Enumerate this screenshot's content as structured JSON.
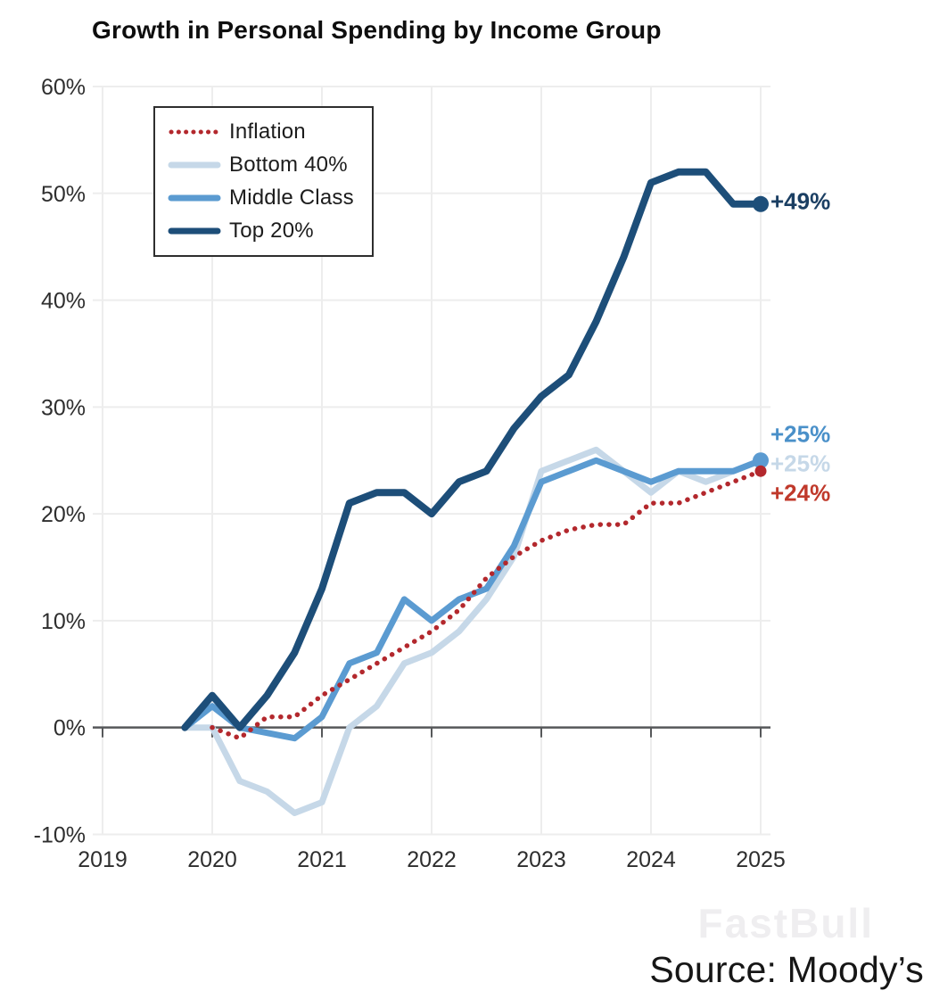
{
  "chart_data": {
    "type": "line",
    "title": "Growth in Personal Spending by Income Group",
    "x_axis": {
      "ticks": [
        "2019",
        "2020",
        "2021",
        "2022",
        "2023",
        "2024",
        "2025"
      ],
      "tick_values": [
        2019,
        2020,
        2021,
        2022,
        2023,
        2024,
        2025
      ],
      "range": [
        2019,
        2025
      ]
    },
    "y_axis": {
      "ticks": [
        "60%",
        "50%",
        "40%",
        "30%",
        "20%",
        "10%",
        "0%",
        "-10%"
      ],
      "tick_values": [
        60,
        50,
        40,
        30,
        20,
        10,
        0,
        -10
      ],
      "range": [
        -10,
        60
      ],
      "unit": "%"
    },
    "grid": true,
    "legend_position": "top-left",
    "series": [
      {
        "name": "Inflation",
        "color": "#b3282d",
        "label_color": "#c0392b",
        "style": "dotted",
        "line_width": 5.5,
        "end_label": "+24%",
        "end_dot": true,
        "dot_radius": 6.5,
        "end_label_offset_y": 25,
        "z": 2,
        "points": [
          [
            2020,
            0
          ],
          [
            2020.25,
            -1
          ],
          [
            2020.5,
            1
          ],
          [
            2020.75,
            1
          ],
          [
            2021,
            3
          ],
          [
            2021.25,
            4.5
          ],
          [
            2021.5,
            6
          ],
          [
            2021.75,
            7.5
          ],
          [
            2022,
            9
          ],
          [
            2022.25,
            11
          ],
          [
            2022.5,
            14
          ],
          [
            2022.75,
            16
          ],
          [
            2023,
            17.5
          ],
          [
            2023.25,
            18.5
          ],
          [
            2023.5,
            19
          ],
          [
            2023.75,
            19
          ],
          [
            2024,
            21
          ],
          [
            2024.25,
            21
          ],
          [
            2024.5,
            22
          ],
          [
            2024.75,
            23
          ],
          [
            2025,
            24
          ]
        ]
      },
      {
        "name": "Bottom 40%",
        "color": "#c6d8e8",
        "label_color": "#c6d8e8",
        "style": "solid",
        "line_width": 7,
        "end_label": "+25%",
        "end_dot": false,
        "dot_radius": 0,
        "end_label_offset_y": 4,
        "z": 0,
        "points": [
          [
            2019.75,
            0
          ],
          [
            2020,
            0
          ],
          [
            2020.25,
            -5
          ],
          [
            2020.5,
            -6
          ],
          [
            2020.75,
            -8
          ],
          [
            2021,
            -7
          ],
          [
            2021.25,
            0
          ],
          [
            2021.5,
            2
          ],
          [
            2021.75,
            6
          ],
          [
            2022,
            7
          ],
          [
            2022.25,
            9
          ],
          [
            2022.5,
            12
          ],
          [
            2022.75,
            16
          ],
          [
            2023,
            24
          ],
          [
            2023.25,
            25
          ],
          [
            2023.5,
            26
          ],
          [
            2023.75,
            24
          ],
          [
            2024,
            22
          ],
          [
            2024.25,
            24
          ],
          [
            2024.5,
            23
          ],
          [
            2024.75,
            24
          ],
          [
            2025,
            25
          ]
        ]
      },
      {
        "name": "Middle Class",
        "color": "#5b9bd1",
        "label_color": "#4a90c9",
        "style": "solid",
        "line_width": 7,
        "end_label": "+25%",
        "end_dot": true,
        "dot_radius": 9,
        "end_label_offset_y": -29,
        "z": 1,
        "points": [
          [
            2019.75,
            0
          ],
          [
            2020,
            2
          ],
          [
            2020.25,
            0
          ],
          [
            2020.5,
            -0.5
          ],
          [
            2020.75,
            -1
          ],
          [
            2021,
            1
          ],
          [
            2021.25,
            6
          ],
          [
            2021.5,
            7
          ],
          [
            2021.75,
            12
          ],
          [
            2022,
            10
          ],
          [
            2022.25,
            12
          ],
          [
            2022.5,
            13
          ],
          [
            2022.75,
            17
          ],
          [
            2023,
            23
          ],
          [
            2023.25,
            24
          ],
          [
            2023.5,
            25
          ],
          [
            2023.75,
            24
          ],
          [
            2024,
            23
          ],
          [
            2024.25,
            24
          ],
          [
            2024.5,
            24
          ],
          [
            2024.75,
            24
          ],
          [
            2025,
            25
          ]
        ]
      },
      {
        "name": "Top 20%",
        "color": "#1d4e79",
        "label_color": "#1b3f63",
        "style": "solid",
        "line_width": 8,
        "end_label": "+49%",
        "end_dot": true,
        "dot_radius": 9,
        "end_label_offset_y": -3,
        "z": 3,
        "points": [
          [
            2019.75,
            0
          ],
          [
            2020,
            3
          ],
          [
            2020.25,
            0
          ],
          [
            2020.5,
            3
          ],
          [
            2020.75,
            7
          ],
          [
            2021,
            13
          ],
          [
            2021.25,
            21
          ],
          [
            2021.5,
            22
          ],
          [
            2021.75,
            22
          ],
          [
            2022,
            20
          ],
          [
            2022.25,
            23
          ],
          [
            2022.5,
            24
          ],
          [
            2022.75,
            28
          ],
          [
            2023,
            31
          ],
          [
            2023.25,
            33
          ],
          [
            2023.5,
            38
          ],
          [
            2023.75,
            44
          ],
          [
            2024,
            51
          ],
          [
            2024.25,
            52
          ],
          [
            2024.5,
            52
          ],
          [
            2024.75,
            49
          ],
          [
            2025,
            49
          ]
        ]
      }
    ]
  },
  "footer": {
    "watermark": "FastBull",
    "source": "Source: Moody’s"
  },
  "colors": {
    "grid": "#ededed",
    "zero_axis": "#56585a",
    "tick_label": "#2e2e2e",
    "background": "#ffffff"
  }
}
